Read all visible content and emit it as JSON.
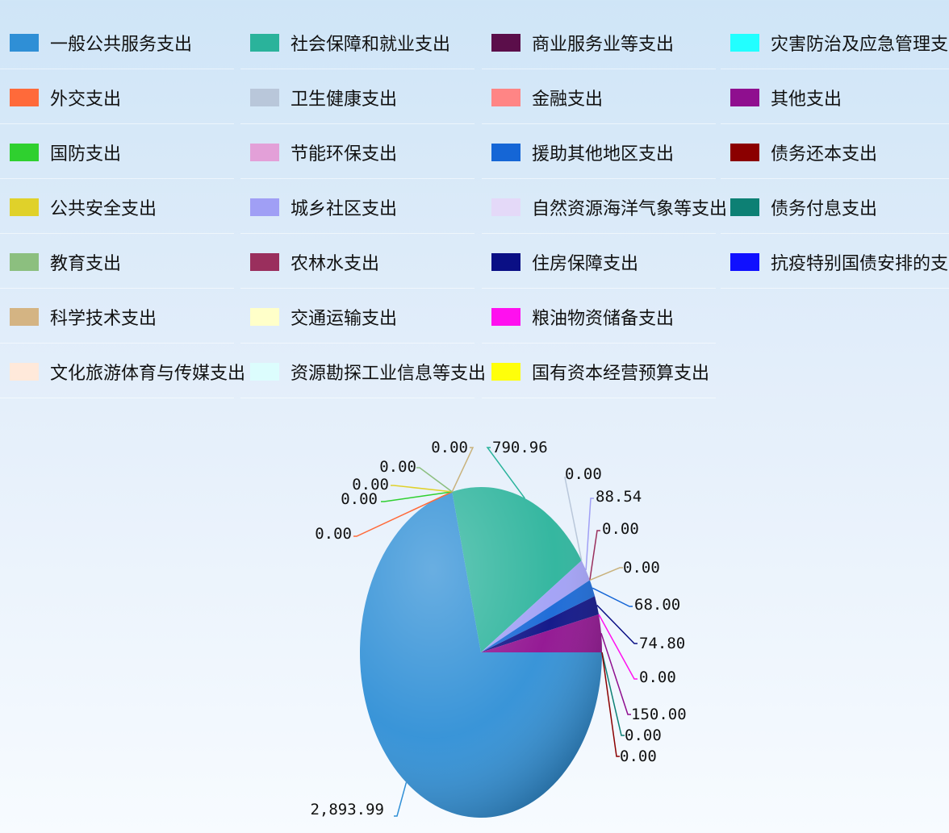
{
  "chart_data": {
    "type": "pie",
    "series": [
      {
        "name": "一般公共服务支出",
        "value": 2893.99,
        "label": "2,893.99",
        "color": "#2f8fd6"
      },
      {
        "name": "外交支出",
        "value": 0,
        "label": "0.00",
        "color": "#ff6a3a"
      },
      {
        "name": "国防支出",
        "value": 0,
        "label": "0.00",
        "color": "#2fd02f"
      },
      {
        "name": "公共安全支出",
        "value": 0,
        "label": "0.00",
        "color": "#e0d12a"
      },
      {
        "name": "教育支出",
        "value": 0,
        "label": "0.00",
        "color": "#8cbf7f"
      },
      {
        "name": "科学技术支出",
        "value": 0,
        "label": "0.00",
        "color": "#d4b483"
      },
      {
        "name": "文化旅游体育与传媒支出",
        "value": 0,
        "label": "0.00",
        "color": "#ffe9da"
      },
      {
        "name": "社会保障和就业支出",
        "value": 790.96,
        "label": "790.96",
        "color": "#2ab39b"
      },
      {
        "name": "卫生健康支出",
        "value": 0,
        "label": "0.00",
        "color": "#b9c7da"
      },
      {
        "name": "节能环保支出",
        "value": 0,
        "label": "0.00",
        "color": "#e3a0d8"
      },
      {
        "name": "城乡社区支出",
        "value": 88.54,
        "label": "88.54",
        "color": "#a09ff5"
      },
      {
        "name": "农林水支出",
        "value": 0,
        "label": "0.00",
        "color": "#9a2f5d"
      },
      {
        "name": "交通运输支出",
        "value": 0,
        "label": "0.00",
        "color": "#ffffc9"
      },
      {
        "name": "资源勘探工业信息等支出",
        "value": 0,
        "label": "0.00",
        "color": "#dcfdfd"
      },
      {
        "name": "商业服务业等支出",
        "value": 0,
        "label": "0.00",
        "color": "#5b0e4a"
      },
      {
        "name": "金融支出",
        "value": 0,
        "label": "0.00",
        "color": "#ff8585"
      },
      {
        "name": "援助其他地区支出",
        "value": 68.0,
        "label": "68.00",
        "color": "#1566d6"
      },
      {
        "name": "自然资源海洋气象等支出",
        "value": 0,
        "label": "0.00",
        "color": "#e4d9f8"
      },
      {
        "name": "住房保障支出",
        "value": 74.8,
        "label": "74.80",
        "color": "#0a0f85"
      },
      {
        "name": "粮油物资储备支出",
        "value": 0,
        "label": "0.00",
        "color": "#ff10ef"
      },
      {
        "name": "国有资本经营预算支出",
        "value": 0,
        "label": "0.00",
        "color": "#ffff0a"
      },
      {
        "name": "灾害防治及应急管理支出",
        "value": 0,
        "label": "0.00",
        "color": "#22ffff"
      },
      {
        "name": "其他支出",
        "value": 150.0,
        "label": "150.00",
        "color": "#8f0f8f"
      },
      {
        "name": "债务还本支出",
        "value": 0,
        "label": "0.00",
        "color": "#8b0000"
      },
      {
        "name": "债务付息支出",
        "value": 0,
        "label": "0.00",
        "color": "#0d8074"
      },
      {
        "name": "抗疫特别国债安排的支出",
        "value": 0,
        "label": "0.00",
        "color": "#1010ff"
      }
    ],
    "legend_position": "top",
    "legend_columns": 4,
    "title": "",
    "xlabel": "",
    "ylabel": ""
  }
}
